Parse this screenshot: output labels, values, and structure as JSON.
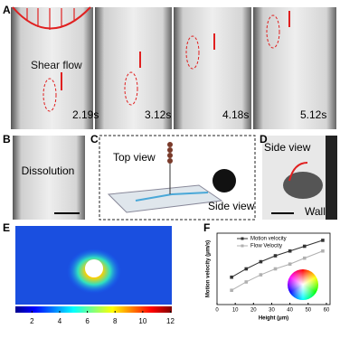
{
  "panels": {
    "A": {
      "label": "A",
      "annotation": "Shear flow",
      "times": [
        "2.19s",
        "3.12s",
        "4.18s",
        "5.12s"
      ]
    },
    "B": {
      "label": "B",
      "annotation": "Dissolution"
    },
    "C": {
      "label": "C",
      "top": "Top view",
      "side": "Side view"
    },
    "D": {
      "label": "D",
      "side": "Side view",
      "wall": "Wall"
    },
    "E": {
      "label": "E",
      "colorbar": {
        "lim": [
          0.8,
          12.1
        ],
        "ticks": [
          2,
          4,
          6,
          8,
          10,
          12
        ]
      }
    },
    "F": {
      "label": "F"
    }
  },
  "chart_data": {
    "type": "line",
    "xlabel": "Height (μm)",
    "ylabel": "Motion velocity (μm/s)",
    "x": [
      8,
      16,
      24,
      32,
      40,
      48,
      58
    ],
    "series": [
      {
        "name": "Motion velocity",
        "color": "#333333",
        "values": [
          115,
          150,
          180,
          205,
          225,
          245,
          270
        ]
      },
      {
        "name": "Flow Velocity",
        "color": "#b0b0b0",
        "values": [
          60,
          95,
          125,
          150,
          170,
          195,
          225
        ]
      }
    ],
    "xlim": [
      0,
      62
    ],
    "ylim": [
      0,
      300
    ],
    "xticks": [
      0,
      10,
      20,
      30,
      40,
      50,
      60
    ]
  }
}
